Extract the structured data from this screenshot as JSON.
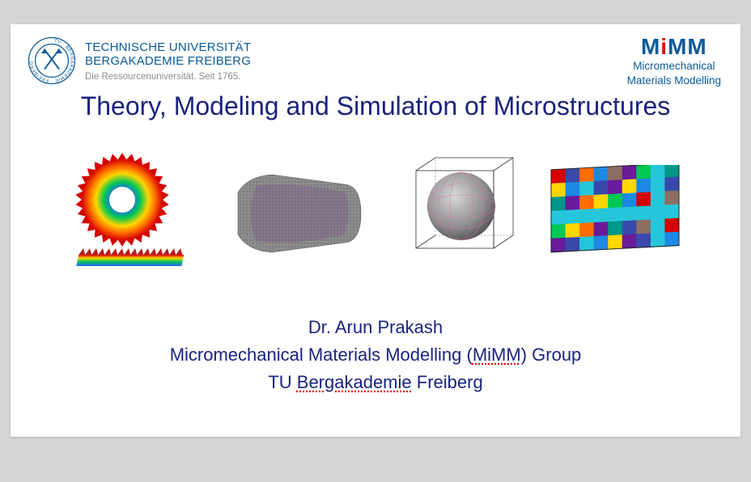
{
  "header": {
    "university": {
      "line1": "TECHNISCHE UNIVERSITÄT",
      "line2": "BERGAKADEMIE FREIBERG",
      "tagline": "Die Ressourcenuniversität. Seit 1765.",
      "logo_color": "#0a5a99",
      "logo_text_inner": "TU · BERGAKADEMIE · FREIBERG ·"
    },
    "mimm": {
      "logo_text": "MiMM",
      "sub1": "Micromechanical",
      "sub2": "Materials Modelling",
      "accent_color": "#e30e0e",
      "primary_color": "#0a5a99"
    }
  },
  "title": "Theory, Modeling and Simulation of Microstructures",
  "images": {
    "items": [
      {
        "name": "gear-rainbow-stress",
        "primary": "#ff0000"
      },
      {
        "name": "grey-purple-sample",
        "primary": "#7a5a8a"
      },
      {
        "name": "sphere-in-cube",
        "primary": "#808080"
      },
      {
        "name": "grain-map-colored",
        "primary": "#1e88e5"
      }
    ],
    "rainbow": [
      "#d50000",
      "#ff6d00",
      "#ffd600",
      "#00c853",
      "#2962ff",
      "#6200ea"
    ],
    "grain_colors": [
      "#d50000",
      "#1e88e5",
      "#00c853",
      "#ffd600",
      "#ff6d00",
      "#6a1b9a",
      "#009688",
      "#3949ab",
      "#8d6e63",
      "#26c6da"
    ]
  },
  "footer": {
    "author": "Dr. Arun Prakash",
    "group_pre": "Micromechanical Materials Modelling (",
    "group_link": "MiMM",
    "group_post": ") Group",
    "inst_pre": "TU ",
    "inst_link": "Bergakademie",
    "inst_post": " Freiberg"
  },
  "colors": {
    "title_color": "#1a237e",
    "body_bg": "#d5d5d5",
    "slide_bg": "#ffffff"
  }
}
